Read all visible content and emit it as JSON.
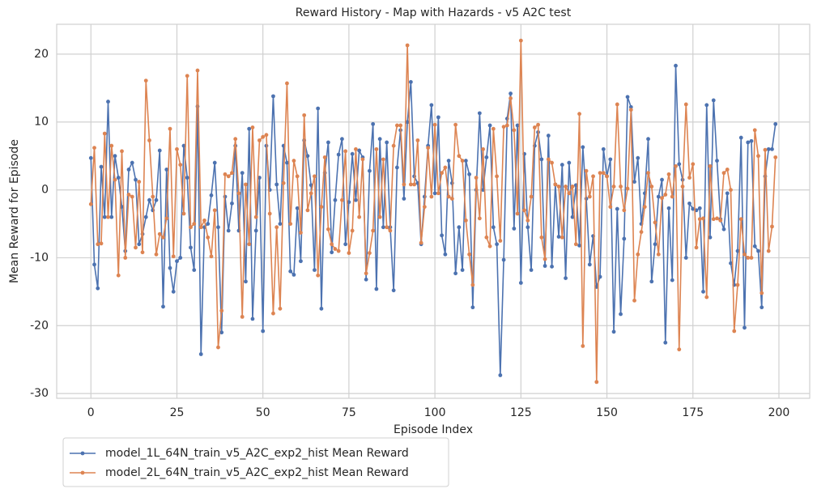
{
  "chart_data": {
    "type": "line",
    "title": "Reward History - Map with Hazards - v5 A2C test",
    "x_label": "Episode Index",
    "y_label": "Mean Reward for Episode",
    "xlim": [
      -9.95,
      208.95
    ],
    "ylim": [
      -30.7,
      24.4
    ],
    "xticks": [
      0,
      25,
      50,
      75,
      100,
      125,
      150,
      175,
      200
    ],
    "yticks": [
      -30,
      -20,
      -10,
      0,
      10,
      20
    ],
    "grid": true,
    "legend": "lower left outside",
    "x": [
      0,
      1,
      2,
      3,
      4,
      5,
      6,
      7,
      8,
      9,
      10,
      11,
      12,
      13,
      14,
      15,
      16,
      17,
      18,
      19,
      20,
      21,
      22,
      23,
      24,
      25,
      26,
      27,
      28,
      29,
      30,
      31,
      32,
      33,
      34,
      35,
      36,
      37,
      38,
      39,
      40,
      41,
      42,
      43,
      44,
      45,
      46,
      47,
      48,
      49,
      50,
      51,
      52,
      53,
      54,
      55,
      56,
      57,
      58,
      59,
      60,
      61,
      62,
      63,
      64,
      65,
      66,
      67,
      68,
      69,
      70,
      71,
      72,
      73,
      74,
      75,
      76,
      77,
      78,
      79,
      80,
      81,
      82,
      83,
      84,
      85,
      86,
      87,
      88,
      89,
      90,
      91,
      92,
      93,
      94,
      95,
      96,
      97,
      98,
      99,
      100,
      101,
      102,
      103,
      104,
      105,
      106,
      107,
      108,
      109,
      110,
      111,
      112,
      113,
      114,
      115,
      116,
      117,
      118,
      119,
      120,
      121,
      122,
      123,
      124,
      125,
      126,
      127,
      128,
      129,
      130,
      131,
      132,
      133,
      134,
      135,
      136,
      137,
      138,
      139,
      140,
      141,
      142,
      143,
      144,
      145,
      146,
      147,
      148,
      149,
      150,
      151,
      152,
      153,
      154,
      155,
      156,
      157,
      158,
      159,
      160,
      161,
      162,
      163,
      164,
      165,
      166,
      167,
      168,
      169,
      170,
      171,
      172,
      173,
      174,
      175,
      176,
      177,
      178,
      179,
      180,
      181,
      182,
      183,
      184,
      185,
      186,
      187,
      188,
      189,
      190,
      191,
      192,
      193,
      194,
      195,
      196,
      197,
      198,
      199
    ],
    "series": [
      {
        "name": "model_1L_64N_train_v5_A2C_exp2_hist Mean Reward",
        "color": "#4c72b0",
        "values": [
          4.7,
          -11,
          -14.5,
          3.4,
          -4,
          13,
          -4,
          5,
          1.8,
          -2.5,
          -9,
          3,
          4,
          1.5,
          -8,
          -6.5,
          -4,
          -1.5,
          -3,
          -1.5,
          5.8,
          -17.2,
          3,
          -11.5,
          -15,
          -10.5,
          -10,
          6.5,
          1.8,
          -8.5,
          -11.8,
          12.3,
          -24.2,
          -5.5,
          -5,
          -0.8,
          4,
          -5.5,
          -21,
          -1,
          -6,
          -2,
          6.5,
          -6,
          2.5,
          -13.5,
          9,
          -19,
          -6,
          1.8,
          -20.8,
          6.5,
          0,
          13.8,
          0.8,
          -5,
          6.5,
          4,
          -12,
          -12.5,
          -2.7,
          -10.5,
          7.3,
          5,
          0.7,
          -11.8,
          12,
          -17.5,
          2.5,
          7,
          -9.2,
          -1.5,
          5.2,
          7.5,
          -8,
          -1.8,
          5.3,
          -1.5,
          5.8,
          4.8,
          -13.2,
          2.8,
          9.7,
          -14.6,
          7.5,
          -5.5,
          7,
          -5.5,
          -14.8,
          3.3,
          8.8,
          -1.3,
          10,
          15.9,
          2,
          1,
          -8,
          -1,
          6.5,
          12.5,
          -0.5,
          10.7,
          -6.7,
          -9.5,
          4.3,
          1,
          -12.3,
          -5.5,
          -11.8,
          4.3,
          2.3,
          -17.3,
          0,
          11.3,
          0,
          4.8,
          9.5,
          -5.5,
          -8,
          -27.3,
          -10.3,
          10.5,
          14.2,
          -5.7,
          9.5,
          -13.7,
          5.3,
          -5.5,
          -11.8,
          6.5,
          8.5,
          4.5,
          -11.2,
          8,
          -11.3,
          0.8,
          -6.9,
          3.7,
          -13,
          4,
          -4,
          0.7,
          -8.2,
          6.3,
          -1.3,
          -11,
          -6.8,
          -14.3,
          -12.8,
          6,
          2,
          4.5,
          -20.9,
          -2.8,
          -18.3,
          -7.2,
          13.7,
          12.2,
          1.2,
          4.7,
          -5,
          -0.5,
          7.5,
          -13.5,
          -8,
          -1,
          1.5,
          -22.5,
          -2.7,
          -13.3,
          18.3,
          3.8,
          1.5,
          -10,
          -2,
          -2.8,
          -3,
          -2.7,
          -15,
          12.5,
          -7,
          13.2,
          4.3,
          -4.3,
          -5.8,
          -0.5,
          -10.8,
          -14,
          -9,
          7.7,
          -20.3,
          7,
          7.2,
          -8.3,
          -9,
          -17.3,
          2,
          6,
          6,
          9.7
        ]
      },
      {
        "name": "model_2L_64N_train_v5_A2C_exp2_hist Mean Reward",
        "color": "#dd8452",
        "values": [
          -2.1,
          6.2,
          -8,
          -7.9,
          8.3,
          -4,
          6.5,
          1.5,
          -12.6,
          5.7,
          -10,
          -0.7,
          -1,
          -8.5,
          1.2,
          -9.2,
          16.1,
          7.3,
          -1,
          -9.5,
          -6.5,
          -7,
          -4.2,
          9,
          -9.8,
          6,
          3.7,
          -3.5,
          16.8,
          -5.5,
          -5,
          17.6,
          -5.5,
          -4.5,
          -7,
          -9.8,
          -3,
          -23.2,
          -17.8,
          2.3,
          2,
          2.5,
          7.5,
          -0.5,
          -18.7,
          0.8,
          -8,
          9.2,
          -4,
          7.3,
          7.8,
          8.1,
          -3.5,
          -18.2,
          -5.5,
          -17.5,
          1,
          15.7,
          -5,
          4.3,
          2,
          -6.3,
          11,
          -3,
          -0.5,
          2,
          -12.6,
          -2.5,
          4.8,
          -5.8,
          -8,
          -8.7,
          -9,
          -1.5,
          5.7,
          -9.3,
          -6,
          6,
          -4,
          4.5,
          -12.3,
          -9.3,
          -6,
          6,
          -4,
          4.5,
          -5.5,
          -6,
          6.5,
          9.5,
          9.5,
          0.8,
          21.3,
          0.8,
          0.8,
          7.3,
          -7.8,
          -2.5,
          6.2,
          -1,
          9.6,
          -0.5,
          2.5,
          3.3,
          -1,
          -1.3,
          9.6,
          5,
          4.3,
          -4.5,
          -9.5,
          -14,
          1.8,
          -4.2,
          6,
          -7,
          -8.3,
          9,
          2,
          -7.5,
          9.3,
          9.5,
          13.5,
          8.8,
          -3.5,
          22,
          -3,
          -4.5,
          -1,
          9.2,
          9.6,
          -7,
          -10.2,
          4.5,
          4,
          0.8,
          0.5,
          -7,
          0.5,
          -0.5,
          0.5,
          -8,
          11.2,
          -23,
          2.8,
          -1,
          2,
          -28.3,
          2.5,
          2.5,
          2,
          -2.5,
          0.5,
          12.6,
          0.5,
          -3,
          0.2,
          11.8,
          -16.3,
          -9.5,
          -6.2,
          -2.5,
          2.5,
          0.5,
          -4.8,
          -9.5,
          -1.2,
          -0.7,
          2.3,
          -1,
          3.5,
          -23.5,
          0.5,
          12.6,
          1.8,
          3.8,
          -8.5,
          -4.3,
          -4.2,
          -15.8,
          3.5,
          -4.3,
          -4.2,
          -4.5,
          2.5,
          3,
          0,
          -20.8,
          -14,
          -4.3,
          -9.5,
          -10,
          -10,
          8.8,
          5,
          -15.2,
          5.9,
          -9,
          -5.4,
          4.8
        ]
      }
    ]
  }
}
